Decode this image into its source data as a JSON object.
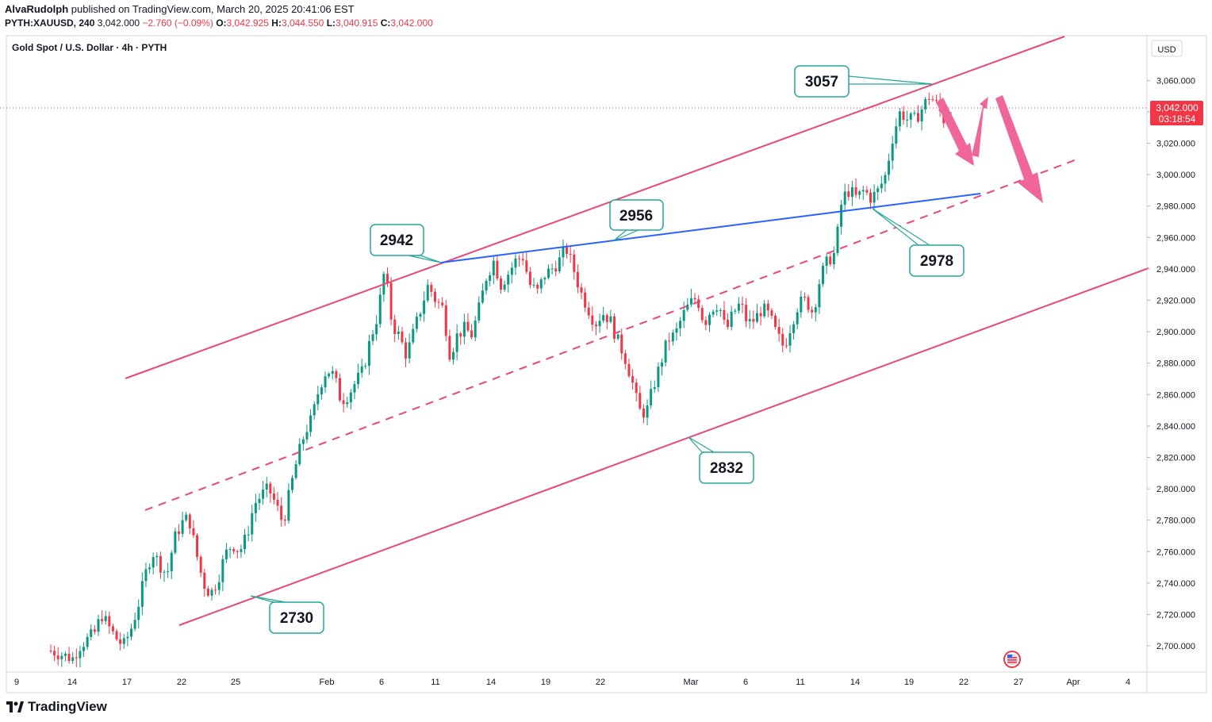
{
  "header": {
    "author": "AlvaRudolph",
    "published_text": "published on TradingView.com, March 20, 2025 20:41:06 EST",
    "symbol_line": "PYTH:XAUUSD, 240",
    "last": "3,042.000",
    "change": "−2.760 (−0.09%)",
    "o_label": "O:",
    "o_value": "3,042.925",
    "h_label": "H:",
    "h_value": "3,044.550",
    "l_label": "L:",
    "l_value": "3,040.915",
    "c_label": "C:",
    "c_value": "3,042.000"
  },
  "legend_title": "Gold Spot / U.S. Dollar · 4h · PYTH",
  "currency_button": "USD",
  "price_tag": {
    "price": "3,042.000",
    "countdown": "03:18:54"
  },
  "footer": {
    "brand": "TradingView"
  },
  "colors": {
    "up": "#089981",
    "down": "#f23645",
    "channel": "#e8467c",
    "trendline": "#2962ff",
    "callout_border": "#26a69a",
    "arrow": "#f0659a"
  },
  "chart_data": {
    "type": "candlestick",
    "title": "Gold Spot / U.S. Dollar · 4h · PYTH",
    "ylim": [
      2684,
      3077
    ],
    "y_ticks": [
      "2,700.000",
      "2,720.000",
      "2,740.000",
      "2,760.000",
      "2,780.000",
      "2,800.000",
      "2,820.000",
      "2,840.000",
      "2,860.000",
      "2,880.000",
      "2,900.000",
      "2,920.000",
      "2,940.000",
      "2,960.000",
      "2,980.000",
      "3,000.000",
      "3,020.000",
      "3,040.000",
      "3,060.000"
    ],
    "x_ticks": [
      "9",
      "14",
      "17",
      "22",
      "25",
      "Feb",
      "6",
      "11",
      "14",
      "19",
      "22",
      "Mar",
      "6",
      "11",
      "14",
      "19",
      "22",
      "27",
      "Apr",
      "4"
    ],
    "annotations": [
      {
        "label": "3057",
        "price": 3057
      },
      {
        "label": "2942",
        "price": 2942
      },
      {
        "label": "2956",
        "price": 2956
      },
      {
        "label": "2978",
        "price": 2978
      },
      {
        "label": "2832",
        "price": 2832
      },
      {
        "label": "2730",
        "price": 2730
      }
    ],
    "price_path": [
      [
        0,
        2697
      ],
      [
        3,
        2692
      ],
      [
        4,
        2700
      ],
      [
        6,
        2708
      ],
      [
        7,
        2720
      ],
      [
        8,
        2712
      ],
      [
        9,
        2705
      ],
      [
        10,
        2700
      ],
      [
        11,
        2710
      ],
      [
        12,
        2725
      ],
      [
        13,
        2745
      ],
      [
        14,
        2760
      ],
      [
        15,
        2752
      ],
      [
        16,
        2745
      ],
      [
        17,
        2768
      ],
      [
        18,
        2778
      ],
      [
        19,
        2782
      ],
      [
        20,
        2760
      ],
      [
        21,
        2740
      ],
      [
        22,
        2733
      ],
      [
        23,
        2742
      ],
      [
        24,
        2758
      ],
      [
        25,
        2765
      ],
      [
        26,
        2760
      ],
      [
        27,
        2770
      ],
      [
        28,
        2790
      ],
      [
        29,
        2796
      ],
      [
        30,
        2800
      ],
      [
        31,
        2790
      ],
      [
        32,
        2778
      ],
      [
        33,
        2800
      ],
      [
        34,
        2820
      ],
      [
        35,
        2836
      ],
      [
        36,
        2845
      ],
      [
        37,
        2865
      ],
      [
        38,
        2876
      ],
      [
        39,
        2872
      ],
      [
        40,
        2856
      ],
      [
        41,
        2860
      ],
      [
        42,
        2868
      ],
      [
        43,
        2875
      ],
      [
        44,
        2895
      ],
      [
        45,
        2910
      ],
      [
        46,
        2940
      ],
      [
        47,
        2905
      ],
      [
        48,
        2897
      ],
      [
        49,
        2885
      ],
      [
        50,
        2900
      ],
      [
        51,
        2915
      ],
      [
        52,
        2930
      ],
      [
        53,
        2920
      ],
      [
        54,
        2915
      ],
      [
        55,
        2885
      ],
      [
        56,
        2898
      ],
      [
        57,
        2902
      ],
      [
        58,
        2898
      ],
      [
        59,
        2915
      ],
      [
        60,
        2935
      ],
      [
        61,
        2945
      ],
      [
        62,
        2930
      ],
      [
        63,
        2937
      ],
      [
        64,
        2945
      ],
      [
        65,
        2948
      ],
      [
        66,
        2930
      ],
      [
        67,
        2925
      ],
      [
        68,
        2936
      ],
      [
        69,
        2940
      ],
      [
        70,
        2945
      ],
      [
        71,
        2953
      ],
      [
        72,
        2940
      ],
      [
        73,
        2925
      ],
      [
        74,
        2915
      ],
      [
        75,
        2905
      ],
      [
        76,
        2912
      ],
      [
        77,
        2908
      ],
      [
        78,
        2895
      ],
      [
        79,
        2885
      ],
      [
        80,
        2870
      ],
      [
        81,
        2850
      ],
      [
        82,
        2848
      ],
      [
        83,
        2865
      ],
      [
        84,
        2880
      ],
      [
        85,
        2895
      ],
      [
        86,
        2898
      ],
      [
        87,
        2910
      ],
      [
        88,
        2918
      ],
      [
        89,
        2922
      ],
      [
        90,
        2905
      ],
      [
        91,
        2915
      ],
      [
        92,
        2918
      ],
      [
        93,
        2900
      ],
      [
        94,
        2912
      ],
      [
        95,
        2918
      ],
      [
        96,
        2905
      ],
      [
        97,
        2908
      ],
      [
        98,
        2915
      ],
      [
        99,
        2910
      ],
      [
        100,
        2898
      ],
      [
        101,
        2890
      ],
      [
        102,
        2905
      ],
      [
        103,
        2918
      ],
      [
        104,
        2920
      ],
      [
        105,
        2912
      ],
      [
        106,
        2935
      ],
      [
        107,
        2945
      ],
      [
        108,
        2950
      ],
      [
        109,
        2985
      ],
      [
        110,
        2990
      ],
      [
        111,
        2985
      ],
      [
        112,
        2990
      ],
      [
        113,
        2985
      ],
      [
        114,
        2990
      ],
      [
        115,
        3000
      ],
      [
        116,
        3025
      ],
      [
        117,
        3040
      ],
      [
        118,
        3035
      ],
      [
        119,
        3035
      ],
      [
        120,
        3042
      ],
      [
        121,
        3050
      ],
      [
        122,
        3045
      ],
      [
        123,
        3035
      ],
      [
        124,
        3042
      ]
    ]
  }
}
